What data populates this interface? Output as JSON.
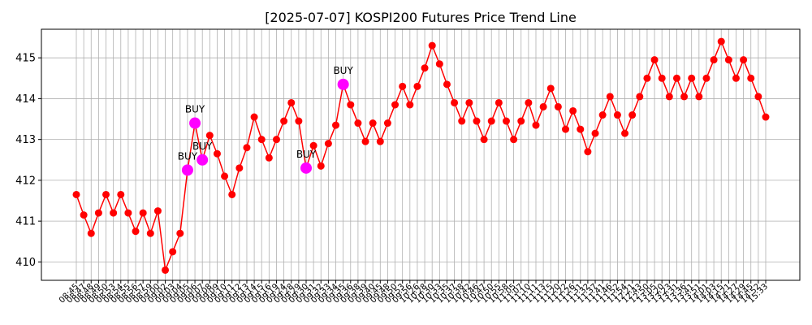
{
  "chart_data": {
    "type": "line",
    "title": "[2025-07-07] KOSPI200 Futures Price Trend Line",
    "xlabel": "",
    "ylabel": "",
    "ylim": [
      409.55,
      415.7
    ],
    "yticks": [
      410,
      411,
      412,
      413,
      414,
      415
    ],
    "grid": true,
    "colors": {
      "line": "#ff0000",
      "buy": "#ff00ff",
      "grid": "#b0b0b0"
    },
    "categories": [
      "08:45",
      "08:47",
      "08:48",
      "08:49",
      "08:50",
      "08:53",
      "08:54",
      "08:55",
      "08:56",
      "08:57",
      "08:59",
      "09:00",
      "09:02",
      "09:03",
      "09:04",
      "09:05",
      "09:06",
      "09:07",
      "09:08",
      "09:09",
      "09:10",
      "09:11",
      "09:12",
      "09:13",
      "09:14",
      "09:15",
      "09:16",
      "09:19",
      "09:24",
      "09:28",
      "09:29",
      "09:30",
      "09:31",
      "09:32",
      "09:33",
      "09:34",
      "09:35",
      "09:36",
      "09:38",
      "09:39",
      "09:40",
      "09:45",
      "09:48",
      "09:50",
      "09:53",
      "09:56",
      "10:26",
      "10:28",
      "10:30",
      "10:33",
      "10:35",
      "10:37",
      "10:38",
      "10:42",
      "10:46",
      "10:47",
      "10:50",
      "10:55",
      "10:58",
      "11:05",
      "11:07",
      "11:10",
      "11:11",
      "11:13",
      "11:15",
      "11:20",
      "11:22",
      "11:26",
      "11:31",
      "11:32",
      "11:37",
      "11:41",
      "11:46",
      "11:52",
      "11:54",
      "12:21",
      "12:43",
      "12:50",
      "13:05",
      "13:20",
      "13:23",
      "13:31",
      "13:36",
      "13:41",
      "13:51",
      "14:01",
      "14:03",
      "14:15",
      "14:21",
      "14:27",
      "14:29",
      "14:45",
      "14:52",
      "15:33"
    ],
    "values": [
      411.65,
      411.15,
      410.7,
      411.2,
      411.65,
      411.2,
      411.65,
      411.2,
      410.75,
      411.2,
      410.7,
      411.25,
      409.8,
      410.25,
      410.7,
      412.25,
      413.4,
      412.5,
      413.1,
      412.65,
      412.1,
      411.65,
      412.3,
      412.8,
      413.55,
      413.0,
      412.55,
      413.0,
      413.45,
      413.9,
      413.45,
      412.3,
      412.85,
      412.35,
      412.9,
      413.35,
      414.35,
      413.85,
      413.4,
      412.95,
      413.4,
      412.95,
      413.4,
      413.85,
      414.3,
      413.85,
      414.3,
      414.75,
      415.3,
      414.85,
      414.35,
      413.9,
      413.45,
      413.9,
      413.45,
      413.0,
      413.45,
      413.9,
      413.45,
      413.0,
      413.45,
      413.9,
      413.35,
      413.8,
      414.25,
      413.8,
      413.25,
      413.7,
      413.25,
      412.7,
      413.15,
      413.6,
      414.05,
      413.6,
      413.15,
      413.6,
      414.05,
      414.5,
      414.95,
      414.5,
      414.05,
      414.5,
      414.05,
      414.5,
      414.05,
      414.5,
      414.95,
      415.4,
      414.95,
      414.5,
      414.95,
      414.5,
      414.05,
      413.55
    ],
    "buy_signals": [
      {
        "index": 15,
        "value": 412.25,
        "label": "BUY"
      },
      {
        "index": 16,
        "value": 413.4,
        "label": "BUY"
      },
      {
        "index": 17,
        "value": 412.5,
        "label": "BUY"
      },
      {
        "index": 31,
        "value": 412.3,
        "label": "BUY"
      },
      {
        "index": 36,
        "value": 414.35,
        "label": "BUY"
      }
    ]
  }
}
